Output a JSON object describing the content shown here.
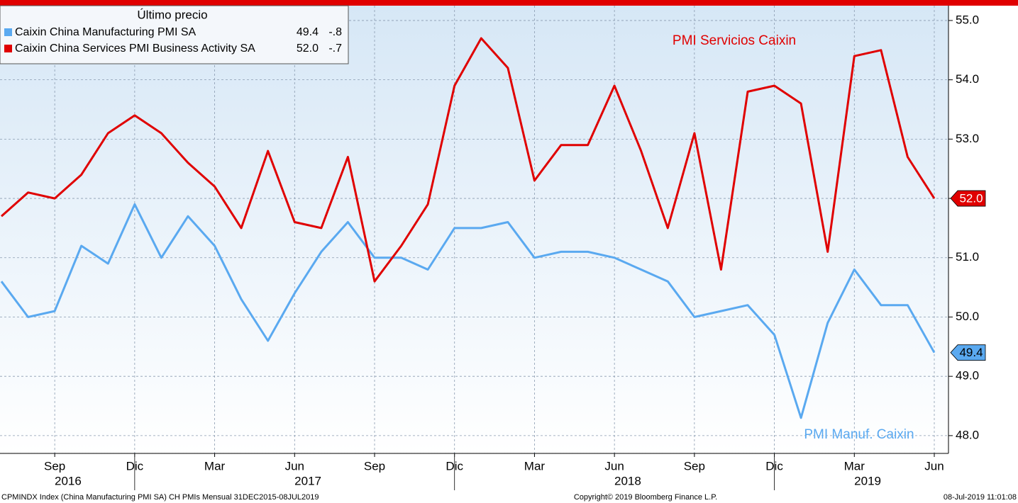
{
  "chart_data": {
    "type": "line",
    "legend_title": "Último precio",
    "x": [
      "2016-07",
      "2016-08",
      "2016-09",
      "2016-10",
      "2016-11",
      "2016-12",
      "2017-01",
      "2017-02",
      "2017-03",
      "2017-04",
      "2017-05",
      "2017-06",
      "2017-07",
      "2017-08",
      "2017-09",
      "2017-10",
      "2017-11",
      "2017-12",
      "2018-01",
      "2018-02",
      "2018-03",
      "2018-04",
      "2018-05",
      "2018-06",
      "2018-07",
      "2018-08",
      "2018-09",
      "2018-10",
      "2018-11",
      "2018-12",
      "2019-01",
      "2019-02",
      "2019-03",
      "2019-04",
      "2019-05",
      "2019-06"
    ],
    "xticks": [
      {
        "value": "2016-09",
        "label": "Sep"
      },
      {
        "value": "2016-12",
        "label": "Dic"
      },
      {
        "value": "2017-03",
        "label": "Mar"
      },
      {
        "value": "2017-06",
        "label": "Jun"
      },
      {
        "value": "2017-09",
        "label": "Sep"
      },
      {
        "value": "2017-12",
        "label": "Dic"
      },
      {
        "value": "2018-03",
        "label": "Mar"
      },
      {
        "value": "2018-06",
        "label": "Jun"
      },
      {
        "value": "2018-09",
        "label": "Sep"
      },
      {
        "value": "2018-12",
        "label": "Dic"
      },
      {
        "value": "2019-03",
        "label": "Mar"
      },
      {
        "value": "2019-06",
        "label": "Jun"
      }
    ],
    "year_labels": [
      "2016",
      "2017",
      "2018",
      "2019"
    ],
    "ylim": [
      47.7,
      55.25
    ],
    "yticks": [
      {
        "value": 48,
        "label": "48.0"
      },
      {
        "value": 49,
        "label": "49.0"
      },
      {
        "value": 50,
        "label": "50.0"
      },
      {
        "value": 51,
        "label": "51.0"
      },
      {
        "value": 52,
        "label": "52.0"
      },
      {
        "value": 53,
        "label": "53.0"
      },
      {
        "value": 54,
        "label": "54.0"
      },
      {
        "value": 55,
        "label": "55.0"
      }
    ],
    "grid": true,
    "series": [
      {
        "name": "Caixin China Manufacturing PMI SA",
        "color": "#5aa9f0",
        "last_label": "49.4",
        "change": {
          "value": -0.8,
          "label": "-.8"
        },
        "annotation": "PMI Manuf. Caixin",
        "values": [
          50.6,
          50.0,
          50.1,
          51.2,
          50.9,
          51.9,
          51.0,
          51.7,
          51.2,
          50.3,
          49.6,
          50.4,
          51.1,
          51.6,
          51.0,
          51.0,
          50.8,
          51.5,
          51.5,
          51.6,
          51.0,
          51.1,
          51.1,
          51.0,
          50.8,
          50.6,
          50.0,
          50.1,
          50.2,
          49.7,
          48.3,
          49.9,
          50.8,
          50.2,
          50.2,
          49.4
        ]
      },
      {
        "name": "Caixin China Services PMI Business Activity SA",
        "color": "#e00000",
        "last_label": "52.0",
        "change": {
          "value": -0.7,
          "label": "-.7"
        },
        "annotation": "PMI Servicios Caixin",
        "values": [
          51.7,
          52.1,
          52.0,
          52.4,
          53.1,
          53.4,
          53.1,
          52.6,
          52.2,
          51.5,
          52.8,
          51.6,
          51.5,
          52.7,
          50.6,
          51.2,
          51.9,
          53.9,
          54.7,
          54.2,
          52.3,
          52.9,
          52.9,
          53.9,
          52.8,
          51.5,
          53.1,
          50.8,
          53.8,
          53.9,
          53.6,
          51.1,
          54.4,
          54.5,
          52.7,
          52.0
        ]
      }
    ],
    "footer_left": "CPMINDX Index (China Manufacturing PMI SA) CH PMIs  Mensual 31DEC2015-08JUL2019",
    "footer_center": "Copyright© 2019 Bloomberg Finance L.P.",
    "footer_right": "08-Jul-2019 11:01:08"
  }
}
